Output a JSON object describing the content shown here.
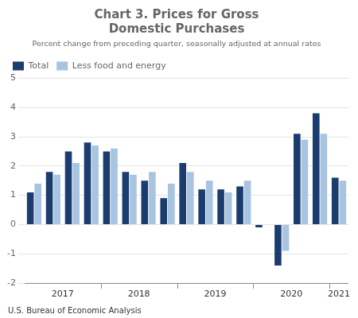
{
  "chart_data": {
    "type": "bar",
    "title": [
      "Chart 3. Prices for Gross",
      "Domestic Purchases"
    ],
    "subtitle": "Percent change from preceding quarter, seasonally adjusted at annual rates",
    "annotations": [
      "U.S. Bureau of Economic Analysis"
    ],
    "categories": [
      "2017",
      "2017",
      "2017",
      "2017",
      "2018",
      "2018",
      "2018",
      "2018",
      "2019",
      "2019",
      "2019",
      "2019",
      "2020",
      "2020",
      "2020",
      "2020",
      "2021"
    ],
    "series": [
      {
        "name": "Total",
        "color": "#1a3d6e",
        "values": [
          1.1,
          1.8,
          2.5,
          2.8,
          2.5,
          1.8,
          1.5,
          0.9,
          2.1,
          1.2,
          1.2,
          1.3,
          -0.1,
          -1.4,
          3.1,
          3.8,
          1.6
        ]
      },
      {
        "name": "Less food and energy",
        "color": "#a8c4e0",
        "values": [
          1.4,
          1.7,
          2.1,
          2.7,
          2.6,
          1.7,
          1.8,
          1.4,
          1.8,
          1.5,
          1.1,
          1.5,
          0.0,
          -0.9,
          2.9,
          3.1,
          1.5
        ]
      }
    ],
    "ylim": [
      -2,
      5
    ],
    "yticks": [
      -2,
      -1,
      0,
      1,
      2,
      3,
      4,
      5
    ],
    "grid": true,
    "legend": "upper left"
  }
}
